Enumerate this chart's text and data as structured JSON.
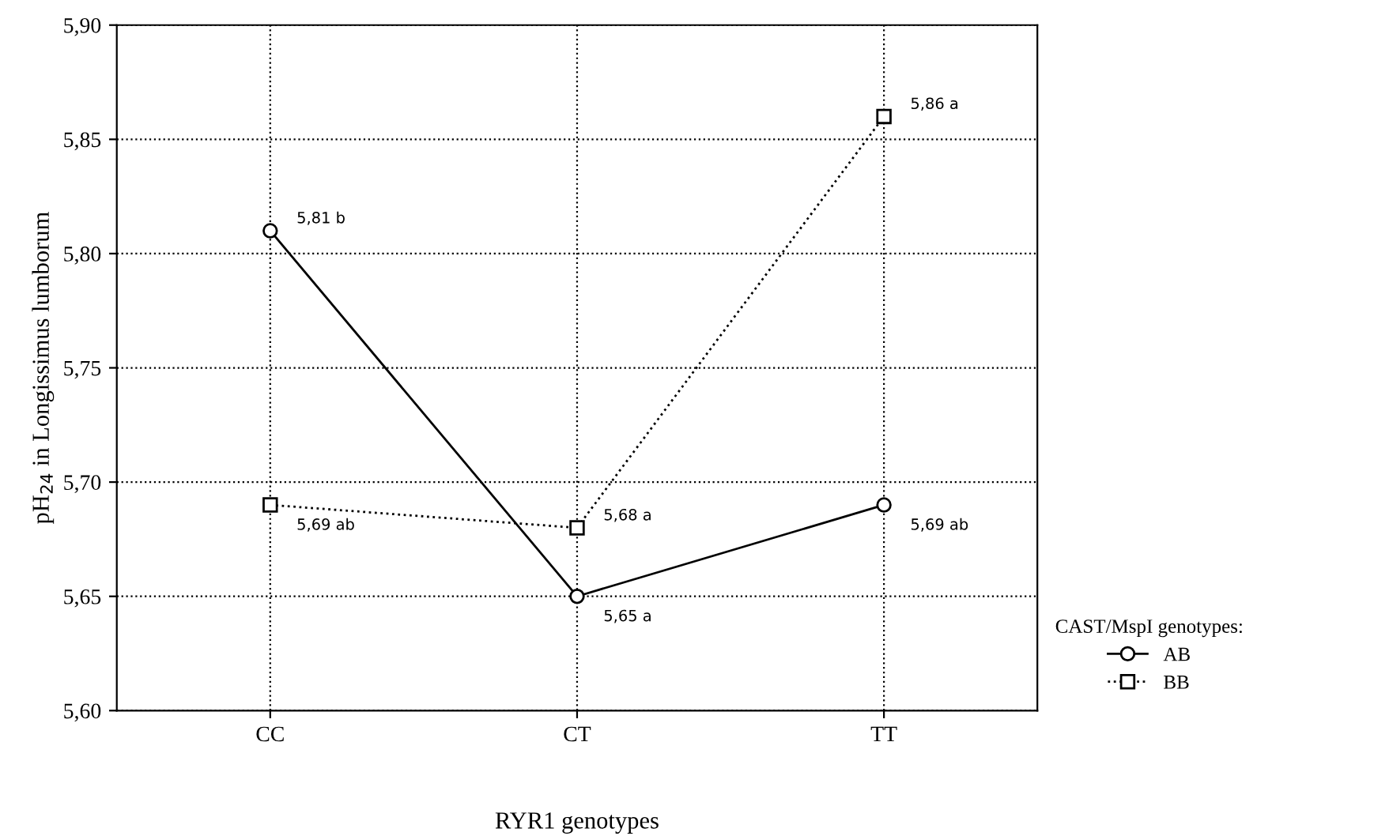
{
  "chart_data": {
    "type": "line",
    "xlabel": "RYR1 genotypes",
    "ylabel": "pH$_{24}$ in Longissimus lumborum",
    "legend_title": "CAST/MspI genotypes:",
    "categories": [
      "CC",
      "CT",
      "TT"
    ],
    "series": [
      {
        "name": "AB",
        "color": "#000000",
        "values": [
          5.81,
          5.65,
          5.69
        ],
        "marker": "circle",
        "line_style": "solid",
        "value_labels": [
          "5,81 b",
          "5,65 a",
          "5,69 ab"
        ]
      },
      {
        "name": "BB",
        "color": "#000000",
        "values": [
          5.69,
          5.68,
          5.86
        ],
        "marker": "square",
        "line_style": "dotted",
        "value_labels": [
          "5,69 ab",
          "5,68 a",
          "5,86 a"
        ]
      }
    ],
    "ylim": [
      5.6,
      5.9
    ],
    "yticks": [
      {
        "value": 5.6,
        "label": "5,60"
      },
      {
        "value": 5.65,
        "label": "5,65"
      },
      {
        "value": 5.7,
        "label": "5,70"
      },
      {
        "value": 5.75,
        "label": "5,75"
      },
      {
        "value": 5.8,
        "label": "5,80"
      },
      {
        "value": 5.85,
        "label": "5,85"
      },
      {
        "value": 5.9,
        "label": "5,90"
      }
    ],
    "grid": true,
    "legend": "bottom right"
  }
}
